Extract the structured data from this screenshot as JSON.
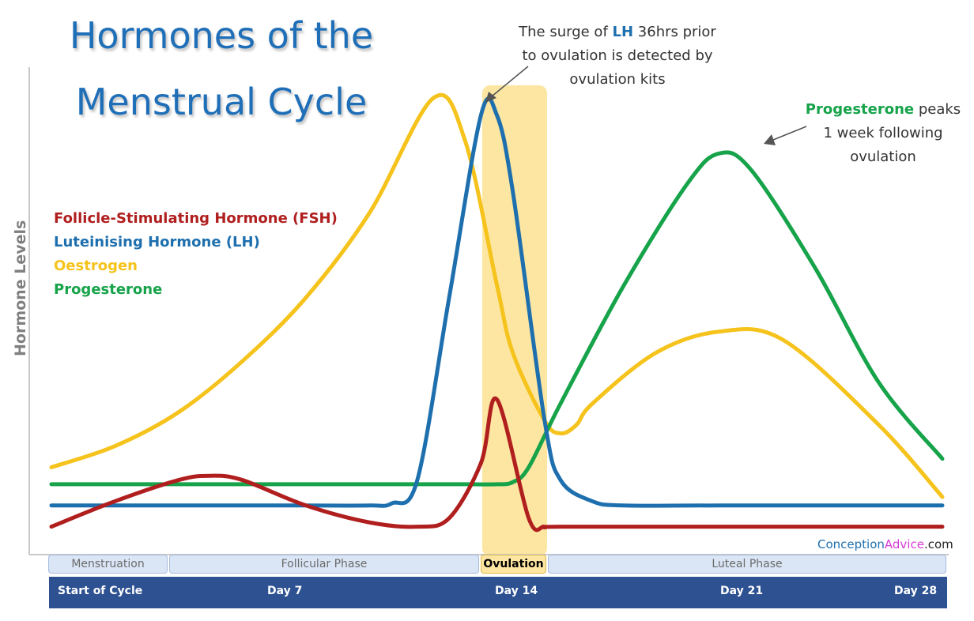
{
  "title": {
    "line1": "Hormones of the",
    "line2": "Menstrual Cycle"
  },
  "ylabel": "Hormone Levels",
  "legend": [
    {
      "label": "Follicle-Stimulating Hormone (FSH)",
      "color": "#b01e1e"
    },
    {
      "label": "Luteinising Hormone (LH)",
      "color": "#1e6fae"
    },
    {
      "label": "Oestrogen",
      "color": "#f5c31c"
    },
    {
      "label": "Progesterone",
      "color": "#16a34a"
    }
  ],
  "annotations": {
    "lh": {
      "pre": "The surge of ",
      "hl": "LH",
      "post": " 36hrs prior",
      "line2": "to ovulation is detected by",
      "line3": "ovulation kits"
    },
    "prog": {
      "hl": "Progesterone",
      "post": " peaks",
      "line2": "1 week following",
      "line3": "ovulation"
    }
  },
  "phases": [
    {
      "label": "Menstruation"
    },
    {
      "label": "Follicular Phase"
    },
    {
      "label": "Ovulation"
    },
    {
      "label": "Luteal Phase"
    }
  ],
  "days": [
    "Start of Cycle",
    "Day 7",
    "Day 14",
    "Day 21",
    "Day 28"
  ],
  "brand": {
    "part1": "Conception",
    "part2": "Advice",
    "part3": ".com"
  },
  "colors": {
    "band": "#fde6a2",
    "daybar": "#2e5192",
    "title": "#1f6fb8"
  },
  "chart_data": {
    "type": "line",
    "title": "Hormones of the Menstrual Cycle",
    "ylabel": "Hormone Levels",
    "xlabel": "",
    "xlim": [
      0,
      28
    ],
    "ylim": [
      0,
      100
    ],
    "ovulation_band": [
      14,
      16
    ],
    "series": [
      {
        "name": "Follicle-Stimulating Hormone (FSH)",
        "color": "#b01e1e",
        "x": [
          0,
          2,
          4,
          5,
          6,
          8,
          10,
          11.5,
          12.5,
          13.5,
          14,
          15,
          15.5,
          16,
          21,
          28
        ],
        "y": [
          1,
          7,
          12,
          13,
          12,
          6,
          2,
          1,
          3,
          16,
          31,
          3,
          1,
          1,
          1,
          1
        ]
      },
      {
        "name": "Luteinising Hormone (LH)",
        "color": "#1e6fae",
        "x": [
          0,
          2,
          4,
          6,
          8,
          10,
          10.7,
          11.5,
          12.5,
          13.5,
          14,
          14.5,
          15.5,
          16,
          17,
          18,
          21,
          28
        ],
        "y": [
          6,
          6,
          6,
          6,
          6,
          6,
          6.5,
          12,
          55,
          98,
          98,
          80,
          26,
          12,
          7,
          6,
          6,
          6
        ]
      },
      {
        "name": "Oestrogen",
        "color": "#f5c31c",
        "x": [
          0,
          2,
          4,
          6,
          8,
          10,
          12,
          13,
          14,
          14.5,
          15.5,
          16,
          16.5,
          17,
          19,
          21,
          23,
          26,
          28
        ],
        "y": [
          15,
          20,
          28,
          40,
          55,
          75,
          102,
          92,
          58,
          42,
          26,
          23,
          25,
          30,
          42,
          47,
          45,
          25,
          8
        ]
      },
      {
        "name": "Progesterone",
        "color": "#16a34a",
        "x": [
          0,
          2,
          4,
          6,
          8,
          10,
          12,
          13,
          14,
          14.5,
          15,
          16,
          18,
          20,
          21,
          22,
          24,
          26,
          28
        ],
        "y": [
          11,
          11,
          11,
          11,
          11,
          11,
          11,
          11,
          11,
          11.5,
          15,
          30,
          58,
          82,
          89,
          85,
          62,
          35,
          17
        ]
      }
    ]
  }
}
